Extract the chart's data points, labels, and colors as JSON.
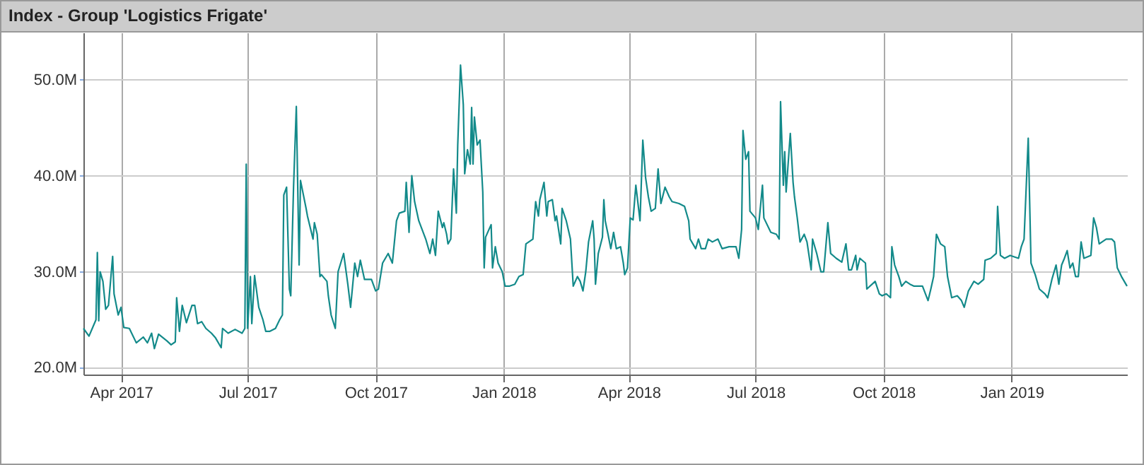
{
  "chart_data": {
    "type": "line",
    "title": "Index - Group 'Logistics Frigate'",
    "x": [
      "2017-03-05",
      "2017-03-09",
      "2017-03-14",
      "2017-03-15",
      "2017-03-16",
      "2017-03-17",
      "2017-03-19",
      "2017-03-21",
      "2017-03-23",
      "2017-03-26",
      "2017-03-27",
      "2017-03-30",
      "2017-04-01",
      "2017-04-03",
      "2017-04-07",
      "2017-04-12",
      "2017-04-17",
      "2017-04-20",
      "2017-04-23",
      "2017-04-25",
      "2017-04-28",
      "2017-05-04",
      "2017-05-07",
      "2017-05-10",
      "2017-05-11",
      "2017-05-13",
      "2017-05-15",
      "2017-05-18",
      "2017-05-22",
      "2017-05-24",
      "2017-05-26",
      "2017-05-29",
      "2017-06-01",
      "2017-06-05",
      "2017-06-08",
      "2017-06-12",
      "2017-06-13",
      "2017-06-17",
      "2017-06-22",
      "2017-06-27",
      "2017-06-29",
      "2017-06-30",
      "2017-07-01",
      "2017-07-03",
      "2017-07-04",
      "2017-07-06",
      "2017-07-09",
      "2017-07-12",
      "2017-07-14",
      "2017-07-17",
      "2017-07-21",
      "2017-07-24",
      "2017-07-26",
      "2017-07-27",
      "2017-07-29",
      "2017-07-31",
      "2017-08-01",
      "2017-08-03",
      "2017-08-05",
      "2017-08-07",
      "2017-08-08",
      "2017-08-12",
      "2017-08-13",
      "2017-08-17",
      "2017-08-18",
      "2017-08-20",
      "2017-08-22",
      "2017-08-23",
      "2017-08-27",
      "2017-08-28",
      "2017-08-30",
      "2017-09-02",
      "2017-09-04",
      "2017-09-08",
      "2017-09-11",
      "2017-09-13",
      "2017-09-16",
      "2017-09-18",
      "2017-09-20",
      "2017-09-23",
      "2017-09-28",
      "2017-10-01",
      "2017-10-03",
      "2017-10-06",
      "2017-10-10",
      "2017-10-13",
      "2017-10-16",
      "2017-10-18",
      "2017-10-22",
      "2017-10-23",
      "2017-10-25",
      "2017-10-27",
      "2017-10-29",
      "2017-11-01",
      "2017-11-06",
      "2017-11-09",
      "2017-11-11",
      "2017-11-13",
      "2017-11-15",
      "2017-11-18",
      "2017-11-19",
      "2017-11-21",
      "2017-11-22",
      "2017-11-24",
      "2017-11-26",
      "2017-11-28",
      "2017-11-29",
      "2017-12-01",
      "2017-12-03",
      "2017-12-04",
      "2017-12-06",
      "2017-12-08",
      "2017-12-09",
      "2017-12-10",
      "2017-12-11",
      "2017-12-13",
      "2017-12-15",
      "2017-12-17",
      "2017-12-18",
      "2017-12-19",
      "2017-12-23",
      "2017-12-24",
      "2017-12-26",
      "2017-12-28",
      "2017-12-31",
      "2018-01-02",
      "2018-01-05",
      "2018-01-09",
      "2018-01-12",
      "2018-01-15",
      "2018-01-17",
      "2018-01-22",
      "2018-01-24",
      "2018-01-26",
      "2018-01-27",
      "2018-01-30",
      "2018-02-01",
      "2018-02-02",
      "2018-02-05",
      "2018-02-07",
      "2018-02-08",
      "2018-02-11",
      "2018-02-12",
      "2018-02-15",
      "2018-02-18",
      "2018-02-20",
      "2018-02-23",
      "2018-02-25",
      "2018-02-27",
      "2018-03-01",
      "2018-03-03",
      "2018-03-06",
      "2018-03-07",
      "2018-03-08",
      "2018-03-10",
      "2018-03-13",
      "2018-03-14",
      "2018-03-15",
      "2018-03-17",
      "2018-03-19",
      "2018-03-21",
      "2018-03-23",
      "2018-03-26",
      "2018-03-28",
      "2018-03-29",
      "2018-03-31",
      "2018-04-02",
      "2018-04-04",
      "2018-04-06",
      "2018-04-09",
      "2018-04-11",
      "2018-04-13",
      "2018-04-15",
      "2018-04-17",
      "2018-04-20",
      "2018-04-22",
      "2018-04-24",
      "2018-04-27",
      "2018-04-30",
      "2018-05-02",
      "2018-05-07",
      "2018-05-11",
      "2018-05-14",
      "2018-05-15",
      "2018-05-17",
      "2018-05-19",
      "2018-05-21",
      "2018-05-23",
      "2018-05-26",
      "2018-05-28",
      "2018-05-31",
      "2018-06-04",
      "2018-06-07",
      "2018-06-12",
      "2018-06-17",
      "2018-06-19",
      "2018-06-21",
      "2018-06-22",
      "2018-06-24",
      "2018-06-26",
      "2018-06-27",
      "2018-07-01",
      "2018-07-03",
      "2018-07-06",
      "2018-07-07",
      "2018-07-12",
      "2018-07-16",
      "2018-07-18",
      "2018-07-19",
      "2018-07-21",
      "2018-07-22",
      "2018-07-23",
      "2018-07-26",
      "2018-07-28",
      "2018-07-29",
      "2018-07-31",
      "2018-08-02",
      "2018-08-05",
      "2018-08-07",
      "2018-08-10",
      "2018-08-11",
      "2018-08-14",
      "2018-08-17",
      "2018-08-19",
      "2018-08-22",
      "2018-08-24",
      "2018-08-28",
      "2018-09-01",
      "2018-09-04",
      "2018-09-06",
      "2018-09-08",
      "2018-09-11",
      "2018-09-12",
      "2018-09-14",
      "2018-09-18",
      "2018-09-19",
      "2018-09-25",
      "2018-09-28",
      "2018-09-30",
      "2018-10-03",
      "2018-10-06",
      "2018-10-07",
      "2018-10-09",
      "2018-10-12",
      "2018-10-14",
      "2018-10-17",
      "2018-10-20",
      "2018-10-23",
      "2018-10-29",
      "2018-11-02",
      "2018-11-04",
      "2018-11-06",
      "2018-11-08",
      "2018-11-11",
      "2018-11-14",
      "2018-11-16",
      "2018-11-19",
      "2018-11-23",
      "2018-11-26",
      "2018-11-28",
      "2018-12-01",
      "2018-12-05",
      "2018-12-08",
      "2018-12-12",
      "2018-12-13",
      "2018-12-17",
      "2018-12-21",
      "2018-12-22",
      "2018-12-24",
      "2018-12-27",
      "2018-12-31",
      "2019-01-06",
      "2019-01-08",
      "2019-01-10",
      "2019-01-13",
      "2019-01-15",
      "2019-01-18",
      "2019-01-21",
      "2019-01-25",
      "2019-01-27",
      "2019-01-30",
      "2019-02-02",
      "2019-02-04",
      "2019-02-06",
      "2019-02-08",
      "2019-02-10",
      "2019-02-12",
      "2019-02-14",
      "2019-02-16",
      "2019-02-18",
      "2019-02-20",
      "2019-02-22",
      "2019-02-27",
      "2019-03-01",
      "2019-03-03",
      "2019-03-05",
      "2019-03-10",
      "2019-03-14",
      "2019-03-16",
      "2019-03-18",
      "2019-03-21",
      "2019-03-25"
    ],
    "series": [
      {
        "color": "#138a8a",
        "values": [
          24.1,
          23.3,
          25.0,
          32.0,
          24.9,
          30.0,
          29.0,
          26.1,
          26.5,
          31.6,
          27.7,
          25.5,
          26.3,
          24.2,
          24.1,
          22.6,
          23.2,
          22.6,
          23.6,
          22.0,
          23.5,
          22.8,
          22.4,
          22.7,
          27.3,
          23.8,
          26.5,
          24.7,
          26.5,
          26.5,
          24.6,
          24.8,
          24.1,
          23.6,
          23.1,
          22.1,
          24.1,
          23.6,
          24.0,
          23.6,
          24.1,
          41.2,
          24.1,
          29.5,
          24.6,
          29.6,
          26.3,
          25.0,
          23.8,
          23.8,
          24.1,
          25.0,
          25.5,
          38.0,
          38.8,
          28.2,
          27.5,
          38.8,
          47.2,
          30.7,
          39.5,
          36.6,
          35.8,
          33.4,
          35.1,
          33.9,
          29.5,
          29.7,
          29.0,
          27.5,
          25.5,
          24.1,
          30.0,
          31.9,
          28.7,
          26.3,
          30.9,
          29.5,
          31.2,
          29.2,
          29.2,
          28.0,
          28.2,
          30.9,
          31.9,
          30.9,
          35.3,
          36.1,
          36.3,
          39.3,
          34.1,
          40.0,
          37.3,
          35.3,
          33.4,
          31.9,
          33.4,
          31.7,
          36.3,
          34.6,
          35.1,
          33.9,
          32.9,
          33.4,
          40.7,
          36.1,
          43.2,
          51.5,
          47.4,
          40.2,
          42.7,
          41.2,
          47.1,
          41.2,
          46.1,
          43.2,
          43.7,
          38.3,
          30.4,
          33.6,
          34.9,
          30.4,
          32.6,
          30.9,
          30.0,
          28.5,
          28.5,
          28.7,
          29.5,
          29.7,
          32.9,
          33.4,
          37.3,
          35.8,
          37.5,
          39.3,
          35.8,
          37.3,
          37.5,
          35.3,
          35.8,
          32.9,
          36.6,
          35.3,
          33.4,
          28.5,
          29.5,
          29.0,
          28.0,
          30.0,
          33.1,
          35.3,
          33.4,
          28.7,
          31.9,
          33.6,
          37.5,
          35.3,
          33.9,
          32.4,
          34.1,
          32.4,
          32.6,
          30.9,
          29.7,
          30.4,
          35.6,
          35.4,
          39.0,
          35.3,
          43.7,
          39.8,
          37.8,
          36.3,
          36.6,
          40.7,
          37.1,
          38.8,
          37.8,
          37.3,
          37.1,
          36.8,
          35.3,
          33.4,
          32.9,
          32.4,
          33.4,
          32.4,
          32.4,
          33.4,
          33.1,
          33.4,
          32.4,
          32.6,
          32.6,
          31.4,
          34.4,
          44.7,
          41.7,
          42.5,
          36.3,
          35.6,
          34.4,
          39.0,
          35.6,
          34.1,
          33.9,
          33.4,
          47.7,
          39.0,
          42.5,
          38.3,
          44.4,
          39.3,
          37.8,
          35.6,
          33.1,
          33.9,
          33.1,
          30.2,
          33.4,
          31.9,
          30.0,
          30.0,
          35.1,
          31.9,
          31.4,
          31.0,
          32.9,
          30.2,
          30.2,
          31.7,
          30.2,
          31.4,
          30.9,
          28.2,
          29.0,
          27.7,
          27.5,
          27.7,
          27.3,
          32.6,
          30.7,
          29.5,
          28.5,
          29.0,
          28.7,
          28.5,
          28.5,
          27.0,
          28.2,
          29.5,
          33.9,
          32.9,
          32.6,
          29.5,
          27.3,
          27.5,
          27.0,
          26.3,
          28.0,
          29.0,
          28.7,
          29.2,
          31.2,
          31.4,
          31.9,
          36.8,
          31.7,
          31.4,
          31.7,
          31.4,
          32.6,
          33.4,
          43.9,
          30.9,
          29.7,
          28.2,
          27.7,
          27.3,
          29.2,
          30.7,
          28.7,
          30.7,
          31.4,
          32.2,
          30.4,
          30.9,
          29.5,
          29.5,
          33.1,
          31.4,
          31.7,
          35.6,
          34.6,
          32.9,
          33.4,
          33.4,
          33.1,
          30.4,
          29.5,
          28.5
        ]
      }
    ],
    "xlim": [
      "2017-03-05",
      "2019-03-25"
    ],
    "xticks": [
      {
        "value": "2017-04-01",
        "label": "Apr 2017"
      },
      {
        "value": "2017-07-01",
        "label": "Jul 2017"
      },
      {
        "value": "2017-10-01",
        "label": "Oct 2017"
      },
      {
        "value": "2018-01-01",
        "label": "Jan 2018"
      },
      {
        "value": "2018-04-01",
        "label": "Apr 2018"
      },
      {
        "value": "2018-07-01",
        "label": "Jul 2018"
      },
      {
        "value": "2018-10-01",
        "label": "Oct 2018"
      },
      {
        "value": "2019-01-01",
        "label": "Jan 2019"
      }
    ],
    "ylim": [
      19.3,
      54.9
    ],
    "yticks": [
      {
        "value": 20,
        "label": "20.0M"
      },
      {
        "value": 30,
        "label": "30.0M"
      },
      {
        "value": 40,
        "label": "40.0M"
      },
      {
        "value": 50,
        "label": "50.0M"
      }
    ],
    "grid": true,
    "marker": "none",
    "line_style": "solid"
  }
}
